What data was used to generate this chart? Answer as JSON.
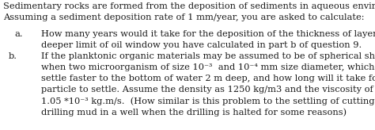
{
  "intro_line1": "Sedimentary rocks are formed from the deposition of sediments in aqueous environments.",
  "intro_line2": "Assuming a sediment deposition rate of 1 mm/year, you are asked to calculate:",
  "item_a_label": "a.",
  "item_a_text1": "How many years would it take for the deposition of the thickness of layers for the",
  "item_a_text2": "deeper limit of oil window you have calculated in part b of question 9.",
  "item_b_label": "b.",
  "item_b_text1": "If the planktonic organic materials may be assumed to be of spherical shape,",
  "item_b_text2": "when two microorganism of size 10⁻³  and 10⁻⁴ mm size diameter, which one will",
  "item_b_text3": "settle faster to the bottom of water 2 m deep, and how long will it take for the fast",
  "item_b_text4": "particle to settle. Assume the density as 1250 kg/m3 and the viscosity of water as",
  "item_b_text5": "1.05 *10⁻³ kg.m/s.  (How similar is this problem to the settling of cuttings in",
  "item_b_text6": "drilling mud in a well when the drilling is halted for some reasons)",
  "font_size": 8.2,
  "text_color": "#1a1a1a",
  "bg_color": "#ffffff"
}
